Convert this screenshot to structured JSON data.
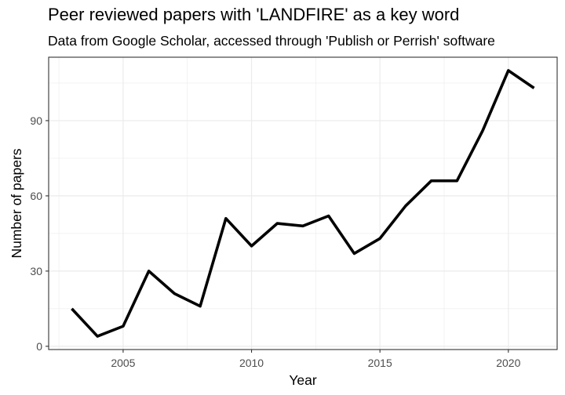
{
  "chart_data": {
    "type": "line",
    "title": "Peer reviewed papers with 'LANDFIRE' as a key word",
    "subtitle": "Data from Google Scholar, accessed through 'Publish or Perrish' software",
    "xlabel": "Year",
    "ylabel": "Number of papers",
    "x": [
      2003,
      2004,
      2005,
      2006,
      2007,
      2008,
      2009,
      2010,
      2011,
      2012,
      2013,
      2014,
      2015,
      2016,
      2017,
      2018,
      2019,
      2020,
      2021
    ],
    "series": [
      {
        "values": [
          15,
          4,
          8,
          30,
          21,
          16,
          51,
          40,
          49,
          48,
          52,
          37,
          43,
          56,
          66,
          66,
          86,
          110,
          103
        ]
      }
    ],
    "x_ticks": [
      2005,
      2010,
      2015,
      2020
    ],
    "x_tick_labels": [
      "2005",
      "2010",
      "2015",
      "2020"
    ],
    "y_ticks": [
      0,
      30,
      60,
      90
    ],
    "y_tick_labels": [
      "0",
      "30",
      "60",
      "90"
    ],
    "xlim": [
      2002.1,
      2021.9
    ],
    "ylim": [
      -1.3,
      115.3
    ],
    "grid": true,
    "legend": "none",
    "colors": {
      "line": "#000000",
      "grid": "#ebebeb",
      "panel_border": "#333333",
      "axis_text": "#4d4d4d"
    }
  }
}
